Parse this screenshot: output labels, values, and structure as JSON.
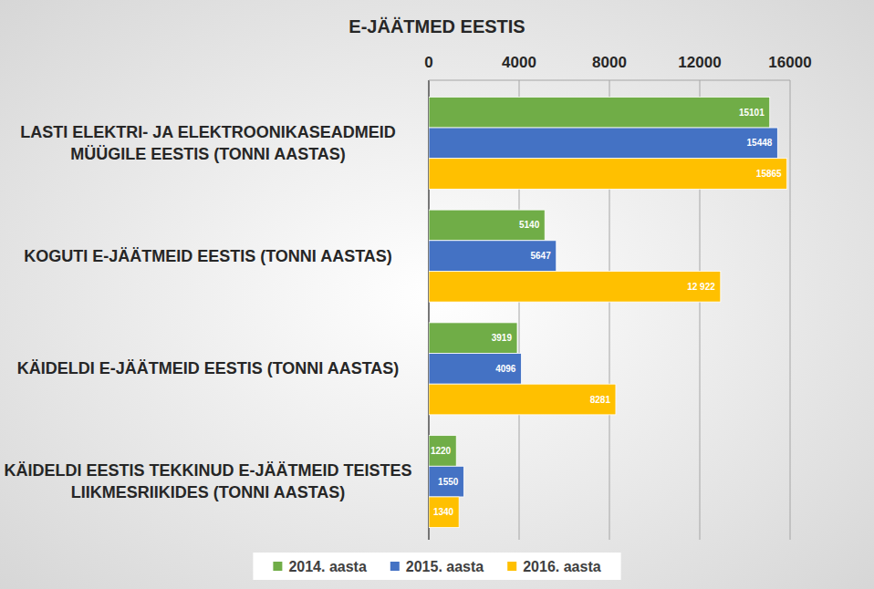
{
  "chart_data": {
    "type": "bar",
    "orientation": "horizontal",
    "title": "E-JÄÄTMED EESTIS",
    "categories": [
      "LASTI ELEKTRI- JA ELEKTROONIKASEADMEID MÜÜGILE EESTIS (TONNI AASTAS)",
      "KOGUTI E-JÄÄTMEID EESTIS (TONNI AASTAS)",
      "KÄIDELDI E-JÄÄTMEID EESTIS (TONNI AASTAS)",
      "KÄIDELDI EESTIS TEKKINUD E-JÄÄTMEID TEISTES LIIKMESRIIKIDES (TONNI AASTAS)"
    ],
    "series": [
      {
        "name": "2014. aasta",
        "color": "#70ad47",
        "values": [
          15101,
          5140,
          3919,
          1220
        ]
      },
      {
        "name": "2015. aasta",
        "color": "#4472c4",
        "values": [
          15448,
          5647,
          4096,
          1550
        ]
      },
      {
        "name": "2016. aasta",
        "color": "#ffc000",
        "values": [
          15865,
          12922,
          8281,
          1340
        ],
        "value_labels": [
          "15865",
          "12 922",
          "8281",
          "1340"
        ]
      }
    ],
    "xlim": [
      0,
      16000
    ],
    "xticks": [
      0,
      4000,
      8000,
      12000,
      16000
    ],
    "grid": true,
    "data_labels": true,
    "legend": "bottom"
  }
}
